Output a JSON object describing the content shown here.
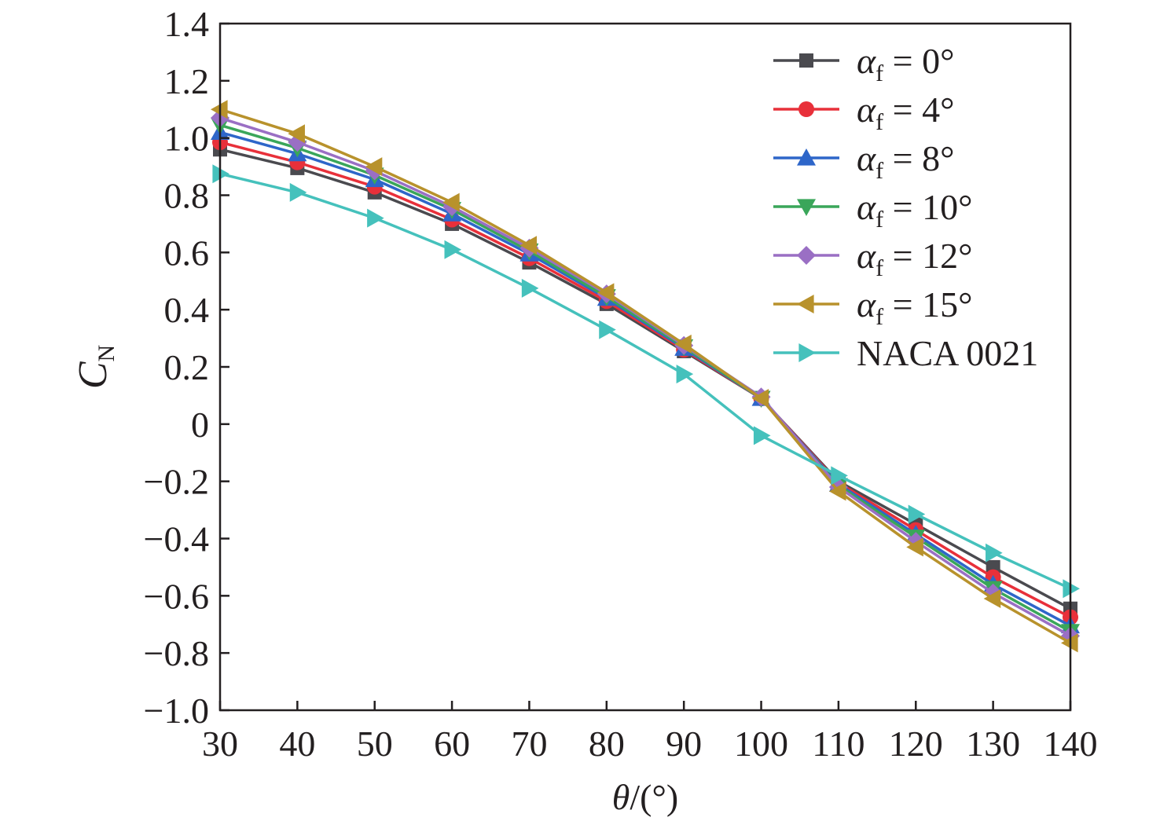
{
  "chart_data": {
    "type": "line",
    "xlabel": {
      "symbol": "θ",
      "unit": "/(°)"
    },
    "ylabel": {
      "symbol": "C",
      "subscript": "N"
    },
    "xlim": [
      30,
      140
    ],
    "ylim": [
      -1.0,
      1.4
    ],
    "x_ticks": [
      30,
      40,
      50,
      60,
      70,
      80,
      90,
      100,
      110,
      120,
      130,
      140
    ],
    "x_tick_labels": [
      "30",
      "40",
      "50",
      "60",
      "70",
      "80",
      "90",
      "100",
      "110",
      "120",
      "130",
      "140"
    ],
    "y_ticks": [
      1.4,
      1.2,
      1.0,
      0.8,
      0.6,
      0.4,
      0.2,
      0,
      -0.2,
      -0.4,
      -0.6,
      -0.8,
      -1.0
    ],
    "y_tick_labels": [
      "1.4",
      "1.2",
      "1.0",
      "0.8",
      "0.6",
      "0.4",
      "0.2",
      "0",
      "−0.2",
      "−0.4",
      "−0.6",
      "−0.8",
      "−1.0"
    ],
    "grid": false,
    "legend_position": "top-right",
    "x": [
      30,
      40,
      50,
      60,
      70,
      80,
      90,
      100,
      110,
      120,
      130,
      140
    ],
    "series": [
      {
        "name": "α_f = 0°",
        "legend_symbol": "α",
        "legend_sub": "f",
        "legend_rest": " = 0°",
        "color": "#4a4a4f",
        "marker": "square",
        "values": [
          0.96,
          0.895,
          0.81,
          0.7,
          0.565,
          0.42,
          0.255,
          0.09,
          -0.2,
          -0.35,
          -0.5,
          -0.645
        ]
      },
      {
        "name": "α_f = 4°",
        "legend_symbol": "α",
        "legend_sub": "f",
        "legend_rest": " = 4°",
        "color": "#e8303a",
        "marker": "circle",
        "values": [
          0.985,
          0.915,
          0.83,
          0.715,
          0.58,
          0.43,
          0.26,
          0.09,
          -0.205,
          -0.37,
          -0.535,
          -0.675
        ]
      },
      {
        "name": "α_f = 8°",
        "legend_symbol": "α",
        "legend_sub": "f",
        "legend_rest": " = 8°",
        "color": "#2e66c9",
        "marker": "triangle-up",
        "values": [
          1.02,
          0.945,
          0.855,
          0.735,
          0.595,
          0.44,
          0.265,
          0.09,
          -0.21,
          -0.385,
          -0.56,
          -0.705
        ]
      },
      {
        "name": "α_f = 10°",
        "legend_symbol": "α",
        "legend_sub": "f",
        "legend_rest": " = 10°",
        "color": "#3aa65a",
        "marker": "triangle-down",
        "values": [
          1.045,
          0.965,
          0.87,
          0.75,
          0.605,
          0.445,
          0.27,
          0.09,
          -0.215,
          -0.395,
          -0.575,
          -0.725
        ]
      },
      {
        "name": "α_f = 12°",
        "legend_symbol": "α",
        "legend_sub": "f",
        "legend_rest": " = 12°",
        "color": "#9a6fc4",
        "marker": "diamond",
        "values": [
          1.07,
          0.985,
          0.885,
          0.76,
          0.615,
          0.455,
          0.275,
          0.095,
          -0.22,
          -0.41,
          -0.59,
          -0.74
        ]
      },
      {
        "name": "α_f = 15°",
        "legend_symbol": "α",
        "legend_sub": "f",
        "legend_rest": " = 15°",
        "color": "#b8922c",
        "marker": "triangle-left",
        "values": [
          1.1,
          1.015,
          0.9,
          0.775,
          0.625,
          0.46,
          0.28,
          0.09,
          -0.235,
          -0.43,
          -0.61,
          -0.765
        ]
      },
      {
        "name": "NACA 0021",
        "legend_symbol": "",
        "legend_sub": "",
        "legend_rest": "NACA 0021",
        "color": "#45c1bc",
        "marker": "triangle-right",
        "values": [
          0.875,
          0.81,
          0.72,
          0.61,
          0.475,
          0.33,
          0.175,
          -0.04,
          -0.18,
          -0.315,
          -0.45,
          -0.575
        ]
      }
    ]
  }
}
